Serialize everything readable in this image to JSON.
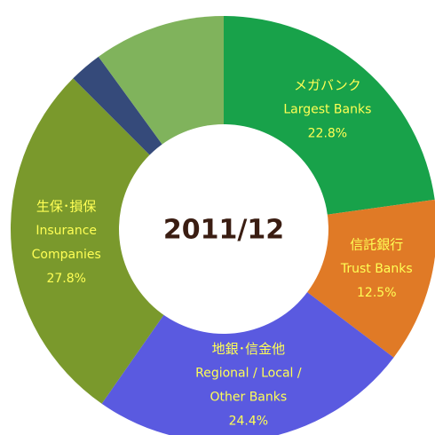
{
  "chart_data": {
    "type": "donut",
    "center_label": "2011/12",
    "categories": [
      "メガバンク",
      "信託銀行",
      "地銀･信金他",
      "生保･損保",
      null,
      null
    ],
    "categories_en": [
      [
        "Largest Banks"
      ],
      [
        "Trust Banks"
      ],
      [
        "Regional / Local /",
        "Other Banks"
      ],
      [
        "Insurance",
        "Companies"
      ],
      null,
      null
    ],
    "values": [
      22.8,
      12.5,
      24.4,
      27.8,
      2.5,
      10.0
    ],
    "value_labels": [
      "22.8%",
      "12.5%",
      "24.4%",
      "27.8%",
      null,
      null
    ],
    "colors": [
      "#18a24a",
      "#e07a26",
      "#5a5ae0",
      "#7a992c",
      "#354a7a",
      "#80b35c"
    ],
    "label_color": "#ffff55"
  }
}
